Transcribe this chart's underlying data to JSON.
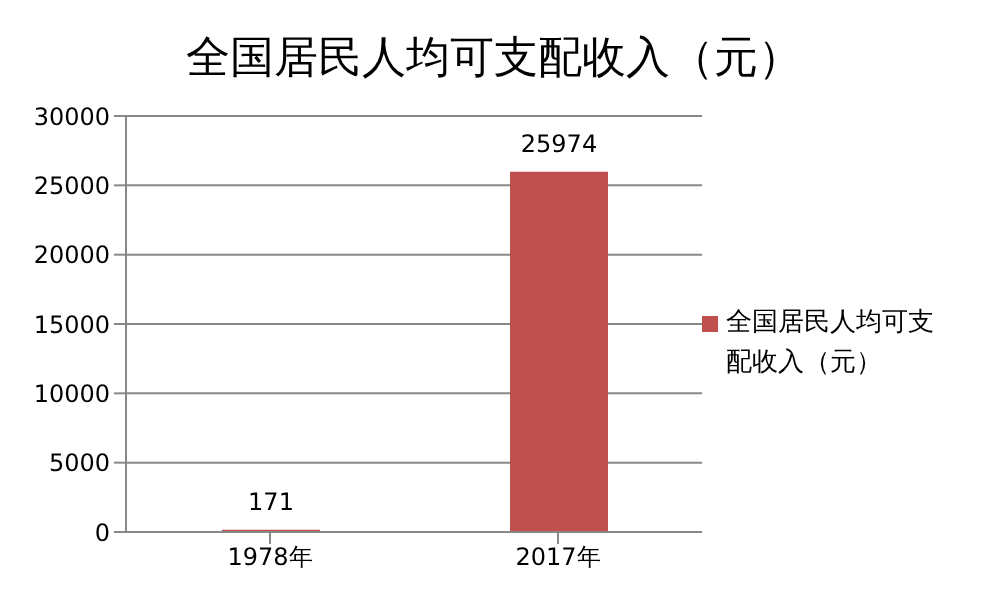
{
  "chart_data": {
    "type": "bar",
    "title": "全国居民人均可支配收入（元）",
    "categories": [
      "1978年",
      "2017年"
    ],
    "series": [
      {
        "name": "全国居民人均可支配收入（元）",
        "color": "#c0504d",
        "values": [
          171,
          25974
        ]
      }
    ],
    "ylim": [
      0,
      30000
    ],
    "yticks": [
      0,
      5000,
      10000,
      15000,
      20000,
      25000,
      30000
    ],
    "grid": "y",
    "legend": "right",
    "data_labels": true
  }
}
